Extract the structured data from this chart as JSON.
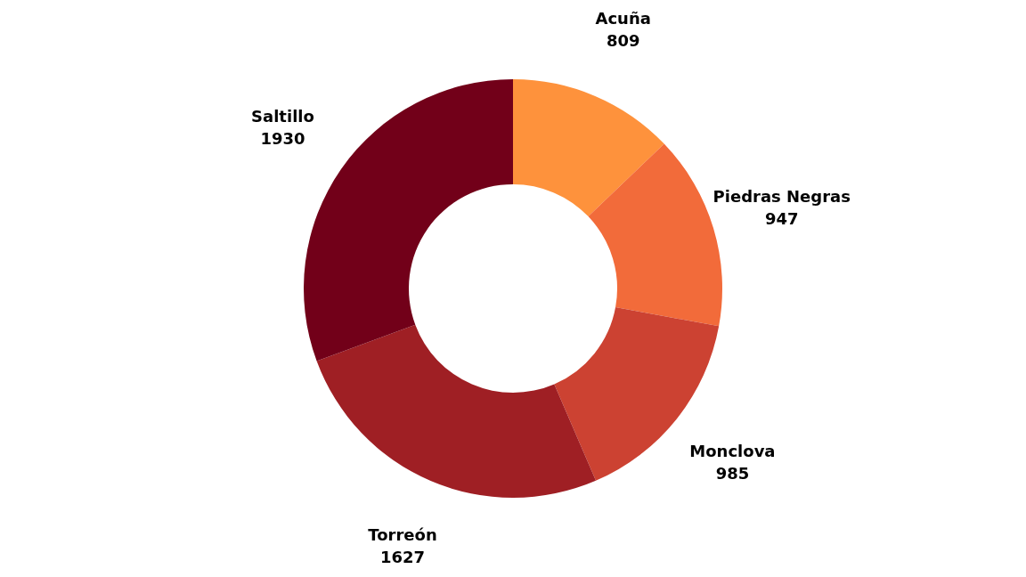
{
  "chart_data": {
    "type": "donut",
    "categories": [
      "Acuña",
      "Piedras Negras",
      "Monclova",
      "Torreón",
      "Saltillo"
    ],
    "values": [
      809,
      947,
      985,
      1627,
      1930
    ],
    "colors": [
      "#fe923c",
      "#f26b3a",
      "#cc4232",
      "#9f1f24",
      "#720019"
    ],
    "data_labels": true
  }
}
